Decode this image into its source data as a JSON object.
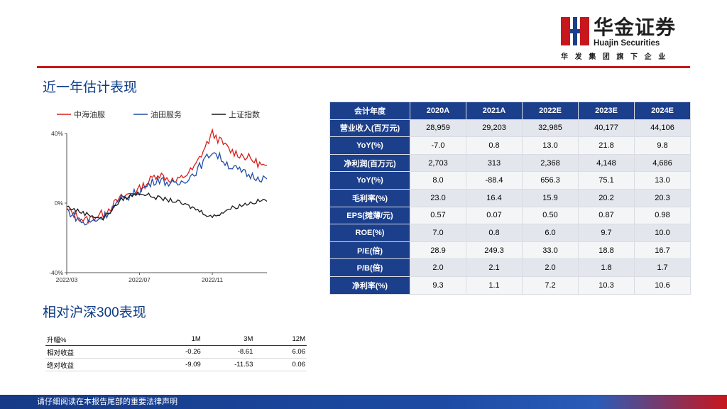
{
  "brand": {
    "name_cn": "华金证券",
    "name_en": "Huajin Securities",
    "tagline": "华发集团旗下企业",
    "colors": {
      "red": "#c8161d",
      "navy": "#1c3f8c"
    }
  },
  "sections": {
    "valuation_title": "近一年估计表现",
    "relative_title": "相对沪深300表现"
  },
  "chart_data": {
    "type": "line",
    "x": [
      "2022/03",
      "2022/04",
      "2022/05",
      "2022/06",
      "2022/07",
      "2022/08",
      "2022/09",
      "2022/10",
      "2022/11",
      "2022/12",
      "2023/01",
      "2023/02"
    ],
    "xticks": [
      "2022/03",
      "2022/07",
      "2022/11"
    ],
    "yticks": [
      "40%",
      "0%",
      "-40%"
    ],
    "ylim": [
      -40,
      40
    ],
    "legend_position": "top",
    "series": [
      {
        "name": "中海油服",
        "color": "#d91e18",
        "values": [
          -4,
          -10,
          -6,
          3,
          8,
          17,
          12,
          20,
          40,
          30,
          26,
          20
        ]
      },
      {
        "name": "油田服务",
        "color": "#1f4fa6",
        "values": [
          -4,
          -12,
          -8,
          2,
          7,
          14,
          10,
          17,
          30,
          21,
          16,
          14
        ]
      },
      {
        "name": "上证指数",
        "color": "#1a1a1a",
        "values": [
          -2,
          -6,
          -9,
          2,
          6,
          3,
          1,
          -3,
          -8,
          -3,
          0,
          2
        ]
      }
    ]
  },
  "fin_table": {
    "headers": [
      "会计年度",
      "2020A",
      "2021A",
      "2022E",
      "2023E",
      "2024E"
    ],
    "rows": [
      {
        "label": "营业收入(百万元)",
        "values": [
          "28,959",
          "29,203",
          "32,985",
          "40,177",
          "44,106"
        ]
      },
      {
        "label": "YoY(%)",
        "values": [
          "-7.0",
          "0.8",
          "13.0",
          "21.8",
          "9.8"
        ]
      },
      {
        "label": "净利润(百万元)",
        "values": [
          "2,703",
          "313",
          "2,368",
          "4,148",
          "4,686"
        ]
      },
      {
        "label": "YoY(%)",
        "values": [
          "8.0",
          "-88.4",
          "656.3",
          "75.1",
          "13.0"
        ]
      },
      {
        "label": "毛利率(%)",
        "values": [
          "23.0",
          "16.4",
          "15.9",
          "20.2",
          "20.3"
        ]
      },
      {
        "label": "EPS(摊薄/元)",
        "values": [
          "0.57",
          "0.07",
          "0.50",
          "0.87",
          "0.98"
        ]
      },
      {
        "label": "ROE(%)",
        "values": [
          "7.0",
          "0.8",
          "6.0",
          "9.7",
          "10.0"
        ]
      },
      {
        "label": "P/E(倍)",
        "values": [
          "28.9",
          "249.3",
          "33.0",
          "18.8",
          "16.7"
        ]
      },
      {
        "label": "P/B(倍)",
        "values": [
          "2.0",
          "2.1",
          "2.0",
          "1.8",
          "1.7"
        ]
      },
      {
        "label": "净利率(%)",
        "values": [
          "9.3",
          "1.1",
          "7.2",
          "10.3",
          "10.6"
        ]
      }
    ]
  },
  "rel_table": {
    "headers": [
      "升幅%",
      "1M",
      "3M",
      "12M"
    ],
    "rows": [
      {
        "label": "相对收益",
        "values": [
          "-0.26",
          "-8.61",
          "6.06"
        ]
      },
      {
        "label": "绝对收益",
        "values": [
          "-9.09",
          "-11.53",
          "0.06"
        ]
      }
    ]
  },
  "footer": {
    "disclaimer": "请仔细阅读在本报告尾部的重要法律声明"
  }
}
